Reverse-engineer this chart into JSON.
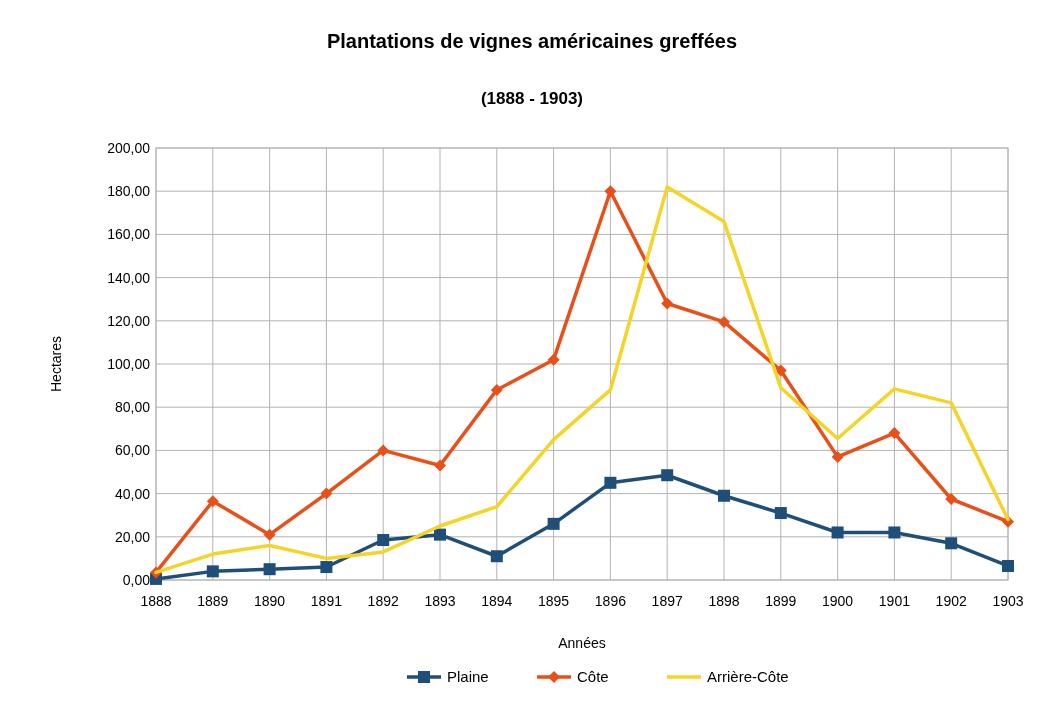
{
  "chart_data": {
    "type": "line",
    "title": "Plantations de vignes américaines greffées",
    "subtitle": "(1888 - 1903)",
    "xlabel": "Années",
    "ylabel": "Hectares",
    "categories": [
      "1888",
      "1889",
      "1890",
      "1891",
      "1892",
      "1893",
      "1894",
      "1895",
      "1896",
      "1897",
      "1898",
      "1899",
      "1900",
      "1901",
      "1902",
      "1903"
    ],
    "series": [
      {
        "name": "Plaine",
        "color": "#1f4e79",
        "marker": "square",
        "values": [
          0.5,
          4,
          5,
          6,
          18.5,
          21,
          11,
          26,
          45,
          48.5,
          39,
          31,
          22,
          22,
          17,
          6.5
        ]
      },
      {
        "name": "Côte",
        "color": "#e8501a",
        "marker": "diamond",
        "values": [
          3.5,
          36.5,
          21,
          40,
          60,
          53,
          88,
          102,
          180,
          128,
          119.5,
          97,
          57,
          68,
          37.5,
          27
        ]
      },
      {
        "name": "Arrière-Côte",
        "color": "#f5d327",
        "marker": "none",
        "values": [
          3.5,
          12,
          16,
          10,
          13,
          25,
          34,
          65,
          88,
          182,
          166,
          89,
          65.5,
          88.5,
          82,
          28
        ]
      }
    ],
    "ylim": [
      0,
      200
    ],
    "yticks": [
      {
        "value": 0,
        "label": "0,00"
      },
      {
        "value": 20,
        "label": "20,00"
      },
      {
        "value": 40,
        "label": "40,00"
      },
      {
        "value": 60,
        "label": "60,00"
      },
      {
        "value": 80,
        "label": "80,00"
      },
      {
        "value": 100,
        "label": "100,00"
      },
      {
        "value": 120,
        "label": "120,00"
      },
      {
        "value": 140,
        "label": "140,00"
      },
      {
        "value": 160,
        "label": "160,00"
      },
      {
        "value": 180,
        "label": "180,00"
      },
      {
        "value": 200,
        "label": "200,00"
      }
    ],
    "grid": true,
    "legend": "bottom"
  }
}
